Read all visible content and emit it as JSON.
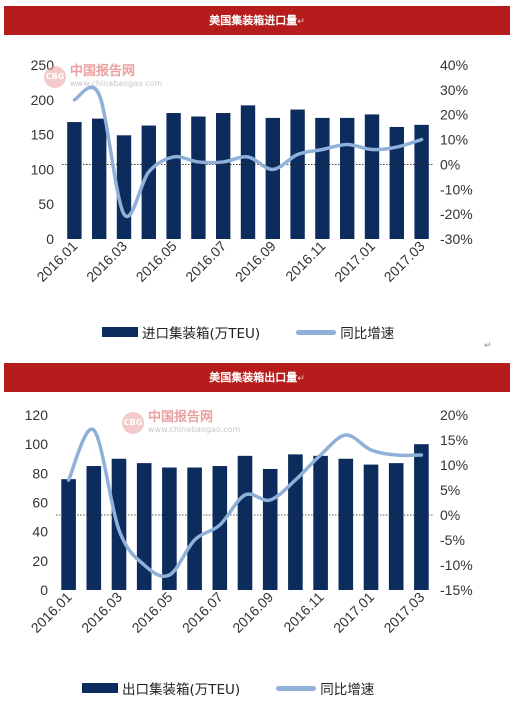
{
  "charts": [
    {
      "banner_title": "美国集装箱进口量",
      "watermark": {
        "name": "中国报告网",
        "url": "www.chinabaogao.com",
        "logo": "CBG"
      },
      "legend_bar": "进口集装箱(万TEU)",
      "legend_line": "同比增速"
    },
    {
      "banner_title": "美国集装箱出口量",
      "watermark": {
        "name": "中国报告网",
        "url": "www.chinabaogao.com",
        "logo": "CBG"
      },
      "legend_bar": "出口集装箱(万TEU)",
      "legend_line": "同比增速"
    }
  ],
  "pilcrow": "↵",
  "colors": {
    "bar": "#0d2c5e",
    "line": "#8fb0d8",
    "banner": "#b71c1c"
  },
  "chart_data": [
    {
      "type": "bar",
      "categories": [
        "2016.01",
        "2016.02",
        "2016.03",
        "2016.04",
        "2016.05",
        "2016.06",
        "2016.07",
        "2016.08",
        "2016.09",
        "2016.10",
        "2016.11",
        "2016.12",
        "2017.01",
        "2017.02",
        "2017.03"
      ],
      "x_tick_labels": [
        "2016.01",
        "2016.03",
        "2016.05",
        "2016.07",
        "2016.09",
        "2016.11",
        "2017.01",
        "2017.03"
      ],
      "series": [
        {
          "name": "进口集装箱(万TEU)",
          "type": "bar",
          "axis": "left",
          "values": [
            168,
            173,
            149,
            163,
            181,
            176,
            181,
            192,
            174,
            186,
            174,
            174,
            179,
            161,
            164
          ]
        },
        {
          "name": "同比增速",
          "type": "line",
          "axis": "right",
          "values": [
            26,
            28,
            -20,
            -3,
            3,
            1,
            1,
            3,
            -2,
            4,
            6,
            8,
            6,
            7,
            10
          ]
        }
      ],
      "ylim": [
        0,
        250
      ],
      "yticks": [
        0,
        50,
        100,
        150,
        200,
        250
      ],
      "y2lim": [
        -30,
        40
      ],
      "y2ticks": [
        "-30%",
        "-20%",
        "-10%",
        "0%",
        "10%",
        "20%",
        "30%",
        "40%"
      ],
      "y2tick_values": [
        -30,
        -20,
        -10,
        0,
        10,
        20,
        30,
        40
      ],
      "legend": "bottom"
    },
    {
      "type": "bar",
      "categories": [
        "2016.01",
        "2016.02",
        "2016.03",
        "2016.04",
        "2016.05",
        "2016.06",
        "2016.07",
        "2016.08",
        "2016.09",
        "2016.10",
        "2016.11",
        "2016.12",
        "2017.01",
        "2017.02",
        "2017.03"
      ],
      "x_tick_labels": [
        "2016.01",
        "2016.03",
        "2016.05",
        "2016.07",
        "2016.09",
        "2016.11",
        "2017.01",
        "2017.03"
      ],
      "series": [
        {
          "name": "出口集装箱(万TEU)",
          "type": "bar",
          "axis": "left",
          "values": [
            76,
            85,
            90,
            87,
            84,
            84,
            85,
            92,
            83,
            93,
            92,
            90,
            86,
            87,
            100
          ]
        },
        {
          "name": "同比增速",
          "type": "line",
          "axis": "right",
          "values": [
            7,
            17,
            -3,
            -10,
            -12,
            -5,
            -2,
            4,
            3,
            7,
            12,
            16,
            13,
            12,
            12
          ]
        }
      ],
      "ylim": [
        0,
        120
      ],
      "yticks": [
        0,
        20,
        40,
        60,
        80,
        100,
        120
      ],
      "y2lim": [
        -15,
        20
      ],
      "y2ticks": [
        "-15%",
        "-10%",
        "-5%",
        "0%",
        "5%",
        "10%",
        "15%",
        "20%"
      ],
      "y2tick_values": [
        -15,
        -10,
        -5,
        0,
        5,
        10,
        15,
        20
      ],
      "legend": "bottom"
    }
  ]
}
